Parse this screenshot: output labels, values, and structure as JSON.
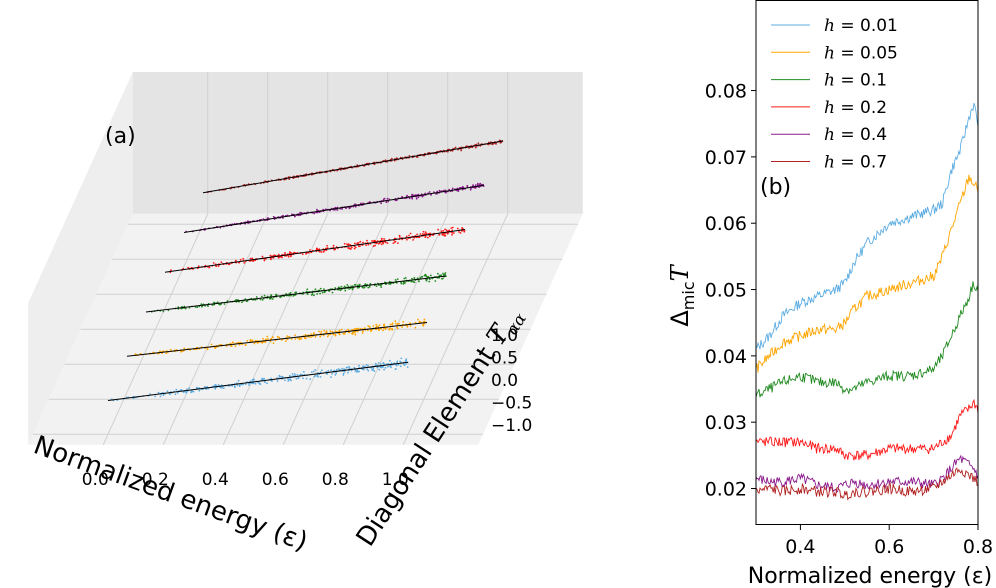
{
  "chart_data": [
    {
      "panel_label": "(a)",
      "type": "scatter",
      "projection": "3d",
      "xlabel": "Normalized energy (ε)",
      "zlabel_prefix": "Diagonal Element ",
      "zlabel_symbol": "T",
      "zlabel_sub": "αα",
      "xlim": [
        0.0,
        1.0
      ],
      "zlim": [
        -1.25,
        1.25
      ],
      "x_ticks": [
        "0.0",
        "0.2",
        "0.4",
        "0.6",
        "0.8",
        "1.0"
      ],
      "z_ticks": [
        "−1.0",
        "−0.5",
        "0.0",
        "0.5",
        "1.0"
      ],
      "series": [
        {
          "name": "h = 0.01",
          "color": "#5dade2",
          "fit_start": [
            0.0,
            -0.5
          ],
          "fit_end": [
            1.0,
            0.35
          ],
          "spread": 0.12
        },
        {
          "name": "h = 0.05",
          "color": "#ffa500",
          "fit_start": [
            0.0,
            -0.45
          ],
          "fit_end": [
            1.0,
            0.3
          ],
          "spread": 0.1
        },
        {
          "name": "h = 0.1",
          "color": "#228b22",
          "fit_start": [
            0.0,
            -0.4
          ],
          "fit_end": [
            1.0,
            0.4
          ],
          "spread": 0.09
        },
        {
          "name": "h = 0.2",
          "color": "#ff1a1a",
          "fit_start": [
            0.0,
            -0.45
          ],
          "fit_end": [
            1.0,
            0.5
          ],
          "spread": 0.1
        },
        {
          "name": "h = 0.4",
          "color": "#8b1a8b",
          "fit_start": [
            0.0,
            -0.5
          ],
          "fit_end": [
            1.0,
            0.55
          ],
          "spread": 0.06
        },
        {
          "name": "h = 0.7",
          "color": "#b22222",
          "fit_start": [
            0.0,
            -0.55
          ],
          "fit_end": [
            1.0,
            0.6
          ],
          "spread": 0.04
        }
      ]
    },
    {
      "panel_label": "(b)",
      "type": "line",
      "xlabel": "Normalized energy (ε)",
      "ylabel_symbol": "Δ",
      "ylabel_sub": "mic",
      "ylabel_suffix": "T",
      "xlim": [
        0.3,
        0.8
      ],
      "ylim": [
        0.0145,
        0.0935
      ],
      "x_ticks": [
        0.4,
        0.6,
        0.8
      ],
      "y_ticks": [
        0.02,
        0.03,
        0.04,
        0.05,
        0.06,
        0.07,
        0.08
      ],
      "x_tick_labels": [
        "0.4",
        "0.6",
        "0.8"
      ],
      "y_tick_labels": [
        "0.02",
        "0.03",
        "0.04",
        "0.05",
        "0.06",
        "0.07",
        "0.08"
      ],
      "legend_loc": "upper-left",
      "series": [
        {
          "name_sym": "h",
          "name_val": " = 0.01",
          "color": "#5dade2",
          "x": [
            0.3,
            0.33,
            0.36,
            0.4,
            0.44,
            0.48,
            0.5,
            0.52,
            0.55,
            0.6,
            0.65,
            0.7,
            0.72,
            0.74,
            0.76,
            0.78,
            0.79,
            0.8
          ],
          "y": [
            0.041,
            0.043,
            0.046,
            0.048,
            0.049,
            0.05,
            0.051,
            0.054,
            0.057,
            0.06,
            0.061,
            0.062,
            0.063,
            0.068,
            0.071,
            0.076,
            0.078,
            0.075
          ]
        },
        {
          "name_sym": "h",
          "name_val": " = 0.05",
          "color": "#ffa500",
          "x": [
            0.3,
            0.33,
            0.36,
            0.4,
            0.44,
            0.48,
            0.5,
            0.52,
            0.55,
            0.6,
            0.65,
            0.7,
            0.72,
            0.74,
            0.76,
            0.78,
            0.79,
            0.8
          ],
          "y": [
            0.038,
            0.04,
            0.042,
            0.043,
            0.044,
            0.044,
            0.045,
            0.047,
            0.049,
            0.05,
            0.051,
            0.052,
            0.055,
            0.059,
            0.063,
            0.067,
            0.066,
            0.065
          ]
        },
        {
          "name_sym": "h",
          "name_val": " = 0.1",
          "color": "#228b22",
          "x": [
            0.3,
            0.33,
            0.36,
            0.4,
            0.44,
            0.48,
            0.5,
            0.52,
            0.55,
            0.6,
            0.65,
            0.7,
            0.72,
            0.74,
            0.76,
            0.78,
            0.79,
            0.8
          ],
          "y": [
            0.034,
            0.035,
            0.036,
            0.037,
            0.036,
            0.036,
            0.035,
            0.035,
            0.036,
            0.037,
            0.037,
            0.038,
            0.04,
            0.043,
            0.046,
            0.049,
            0.051,
            0.05
          ]
        },
        {
          "name_sym": "h",
          "name_val": " = 0.2",
          "color": "#ff1a1a",
          "x": [
            0.3,
            0.33,
            0.36,
            0.4,
            0.44,
            0.48,
            0.5,
            0.52,
            0.55,
            0.6,
            0.65,
            0.7,
            0.72,
            0.74,
            0.76,
            0.78,
            0.79,
            0.8
          ],
          "y": [
            0.027,
            0.027,
            0.027,
            0.027,
            0.026,
            0.026,
            0.025,
            0.025,
            0.025,
            0.026,
            0.026,
            0.026,
            0.027,
            0.028,
            0.031,
            0.032,
            0.033,
            0.032
          ]
        },
        {
          "name_sym": "h",
          "name_val": " = 0.4",
          "color": "#8b1a8b",
          "x": [
            0.3,
            0.33,
            0.36,
            0.4,
            0.44,
            0.48,
            0.5,
            0.52,
            0.55,
            0.6,
            0.65,
            0.7,
            0.72,
            0.74,
            0.76,
            0.78,
            0.79,
            0.8
          ],
          "y": [
            0.0215,
            0.021,
            0.021,
            0.0215,
            0.0205,
            0.02,
            0.0205,
            0.021,
            0.0205,
            0.021,
            0.021,
            0.0205,
            0.0215,
            0.023,
            0.0245,
            0.0235,
            0.023,
            0.022
          ]
        },
        {
          "name_sym": "h",
          "name_val": " = 0.7",
          "color": "#b22222",
          "x": [
            0.3,
            0.33,
            0.36,
            0.4,
            0.44,
            0.48,
            0.5,
            0.52,
            0.55,
            0.6,
            0.65,
            0.7,
            0.72,
            0.74,
            0.76,
            0.78,
            0.79,
            0.8
          ],
          "y": [
            0.0195,
            0.02,
            0.0195,
            0.02,
            0.0195,
            0.0195,
            0.019,
            0.0195,
            0.0195,
            0.02,
            0.0195,
            0.02,
            0.021,
            0.022,
            0.023,
            0.022,
            0.0215,
            0.021
          ]
        }
      ]
    }
  ]
}
